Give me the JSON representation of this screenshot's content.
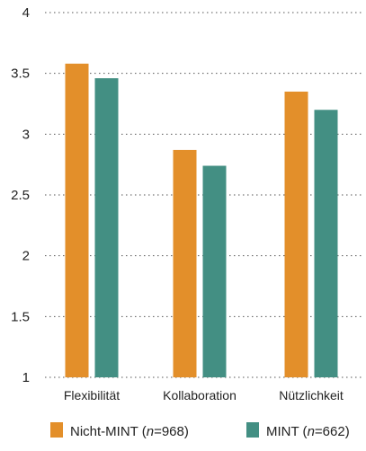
{
  "chart_data": {
    "type": "bar",
    "categories": [
      "Flexibilität",
      "Kollaboration",
      "Nützlichkeit"
    ],
    "series": [
      {
        "name": "Nicht-MINT",
        "n_label": "n",
        "n_value": "=968",
        "color": "#E38F2A",
        "values": [
          3.58,
          2.87,
          3.35
        ]
      },
      {
        "name": "MINT",
        "n_label": "n",
        "n_value": "=662",
        "color": "#438F83",
        "values": [
          3.46,
          2.74,
          3.2
        ]
      }
    ],
    "yticks": [
      "1",
      "1.5",
      "2",
      "2.5",
      "3",
      "3.5",
      "4"
    ],
    "ylim": [
      1,
      4
    ],
    "grid": true,
    "legend_position": "bottom",
    "title": "",
    "xlabel": "",
    "ylabel": ""
  }
}
